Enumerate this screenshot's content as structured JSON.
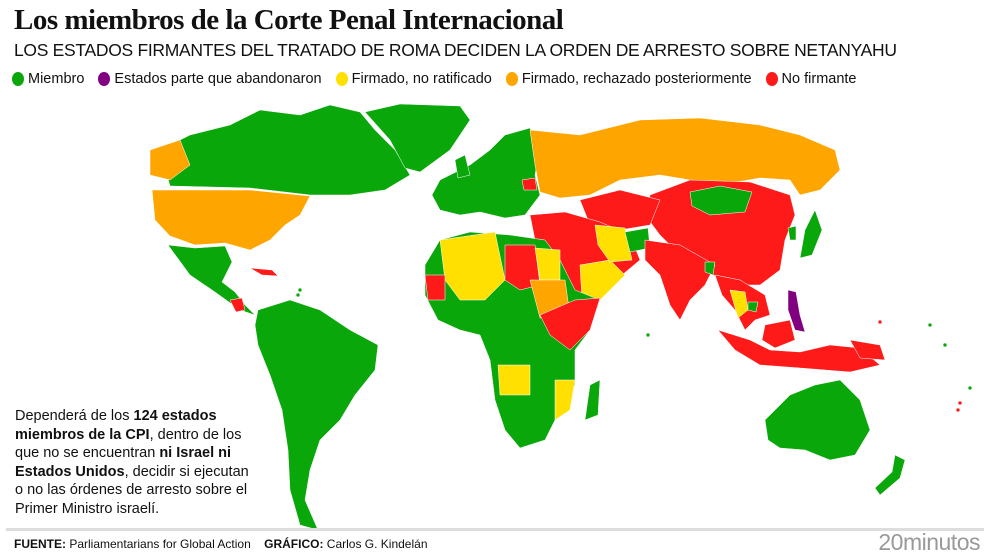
{
  "header": {
    "title": "Los miembros de la Corte Penal Internacional",
    "subtitle": "LOS ESTADOS FIRMANTES DEL TRATADO DE ROMA DECIDEN LA ORDEN DE ARRESTO SOBRE NETANYAHU"
  },
  "legend": [
    {
      "label": "Miembro",
      "color": "#0aa70a"
    },
    {
      "label": "Estados parte que abandonaron",
      "color": "#800080"
    },
    {
      "label": "Firmado, no ratificado",
      "color": "#ffe000"
    },
    {
      "label": "Firmado, rechazado posteriormente",
      "color": "#ffa500"
    },
    {
      "label": "No firmante",
      "color": "#ff1a1a"
    }
  ],
  "note": {
    "t1": "Dependerá de los ",
    "b1": "124 estados miembros de la CPI",
    "t2": ", dentro de los que no se encuentran ",
    "b2": "ni Israel ni Estados Unidos",
    "t3": ", decidir si ejecutan o no las órdenes de arresto sobre el Primer Ministro israelí."
  },
  "footer": {
    "source_label": "FUENTE:",
    "source": " Parliamentarians for Global Action",
    "graphic_label": "GRÁFICO:",
    "graphic": " Carlos G. Kindelán",
    "brand": "20minutos"
  }
}
